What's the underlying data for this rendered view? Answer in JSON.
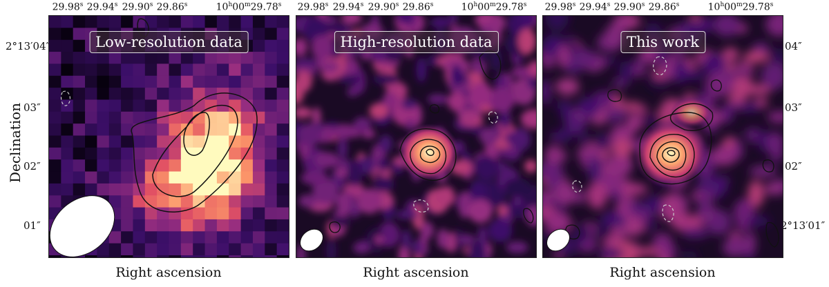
{
  "panels": [
    {
      "title": "Low-resolution data"
    },
    {
      "title": "High-resolution data"
    },
    {
      "title": "This work"
    }
  ],
  "ra_ticks": [
    "29.98",
    "29.94",
    "29.90",
    "29.86",
    "29.78"
  ],
  "ra_unit": "s",
  "ra_last_prefix": "10",
  "ra_last_h": "h",
  "ra_last_m": "00",
  "ra_last_msym": "m",
  "dec_left": [
    "2°13′04″",
    "03″",
    "02″",
    "01″"
  ],
  "dec_right": [
    "04″",
    "03″",
    "02″",
    "2°13′01″"
  ],
  "xlabel": "Right ascension",
  "ylabel": "Declination",
  "colormap": {
    "low": "#050008",
    "mid": "#8b2f86",
    "high": "#fffac0"
  }
}
